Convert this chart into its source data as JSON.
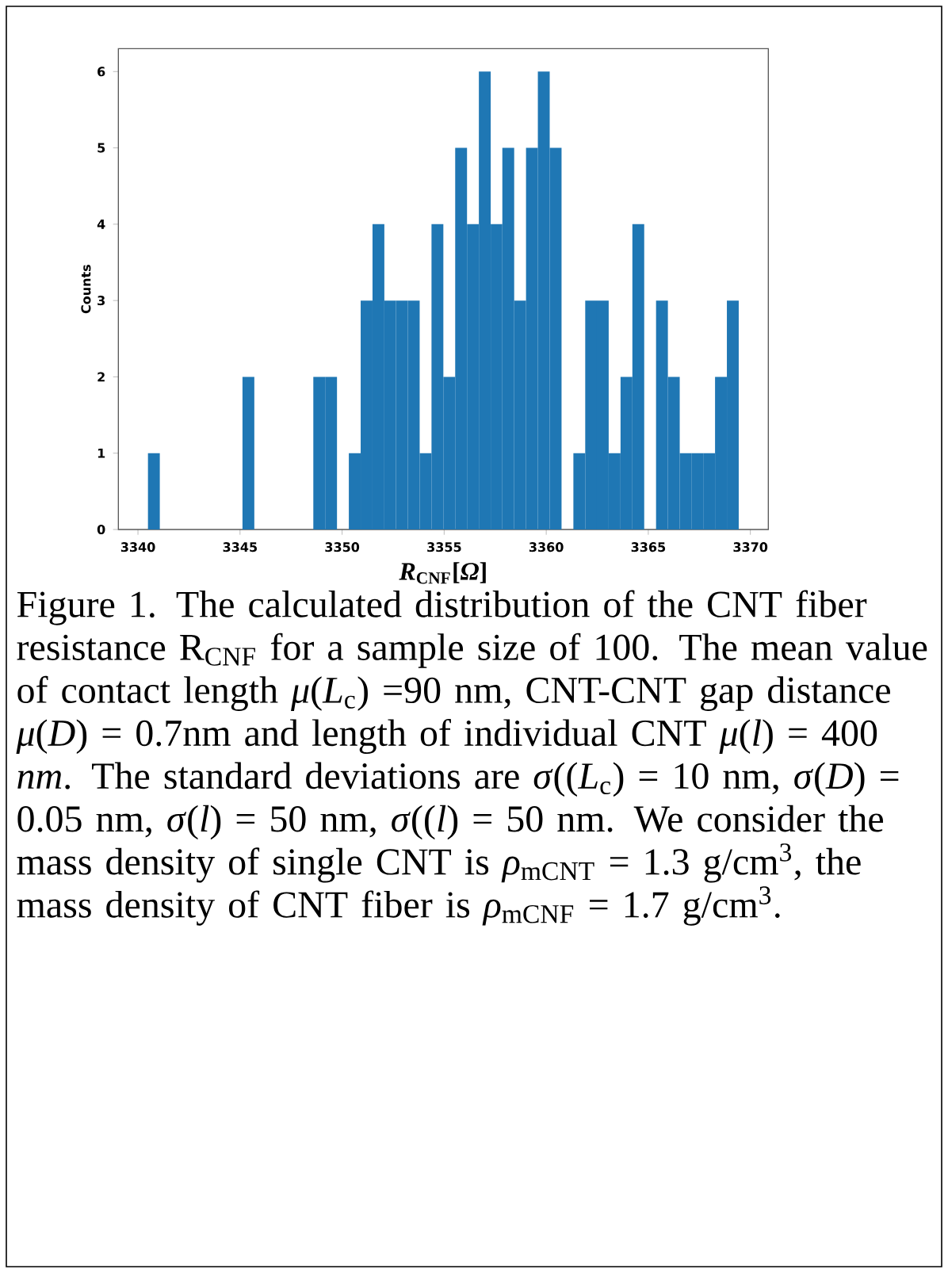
{
  "chart_data": {
    "type": "histogram",
    "xlabel": "*R*$_{CNF}$[*Ω*]",
    "ylabel": "Counts",
    "bins": [
      3340.49,
      3341.07,
      3341.65,
      3342.23,
      3342.81,
      3343.38,
      3343.96,
      3344.54,
      3345.12,
      3345.7,
      3346.28,
      3346.86,
      3347.44,
      3348.01,
      3348.59,
      3349.17,
      3349.75,
      3350.33,
      3350.91,
      3351.49,
      3352.07,
      3352.64,
      3353.22,
      3353.8,
      3354.38,
      3354.96,
      3355.54,
      3356.12,
      3356.7,
      3357.28,
      3357.85,
      3358.43,
      3359.01,
      3359.59,
      3360.17,
      3360.75,
      3361.33,
      3361.91,
      3362.48,
      3363.06,
      3363.64,
      3364.22,
      3364.8,
      3365.38,
      3365.96,
      3366.54,
      3367.11,
      3367.69,
      3368.27,
      3368.85,
      3369.43
    ],
    "values": [
      1,
      0,
      0,
      0,
      0,
      0,
      0,
      0,
      2,
      0,
      0,
      0,
      0,
      0,
      2,
      2,
      0,
      1,
      3,
      4,
      3,
      3,
      3,
      1,
      4,
      2,
      5,
      4,
      6,
      4,
      5,
      3,
      5,
      6,
      5,
      0,
      1,
      3,
      3,
      1,
      2,
      4,
      0,
      3,
      2,
      1,
      1,
      1,
      2,
      3
    ],
    "color": "#1f77b4",
    "xlim": [
      3339.04,
      3370.88
    ],
    "ylim": [
      0,
      6.3
    ],
    "xticks": [
      3340,
      3345,
      3350,
      3355,
      3360,
      3365,
      3370
    ],
    "yticks": [
      0,
      1,
      2,
      3,
      4,
      5,
      6
    ],
    "annotations": [
      "Figure 1. The calculated distribution of the CNT fiber resistance R$_{CNF}$ for a sample size of 100. The mean value of contact length *μ*(*L*$_{c}$) =90 nm, CNT-CNT gap distance *μ*(*D*) = 0.7nm and length of individual CNT *μ*(*l*) = 400 *nm*. The standard deviations are *σ*((*L*$_{c}$) = 10 nm, *σ*(*D*) = 0.05 nm, *σ*(*l*) = 50 nm, *σ*((*l*) = 50 nm. We consider the mass density of single CNT is *ρ*$_{mCNT}$ = 1.3 g/cm$^{3}$, the mass density of CNT fiber is *ρ*$_{mCNF}$ = 1.7 g/cm$^{3}$."
    ]
  }
}
